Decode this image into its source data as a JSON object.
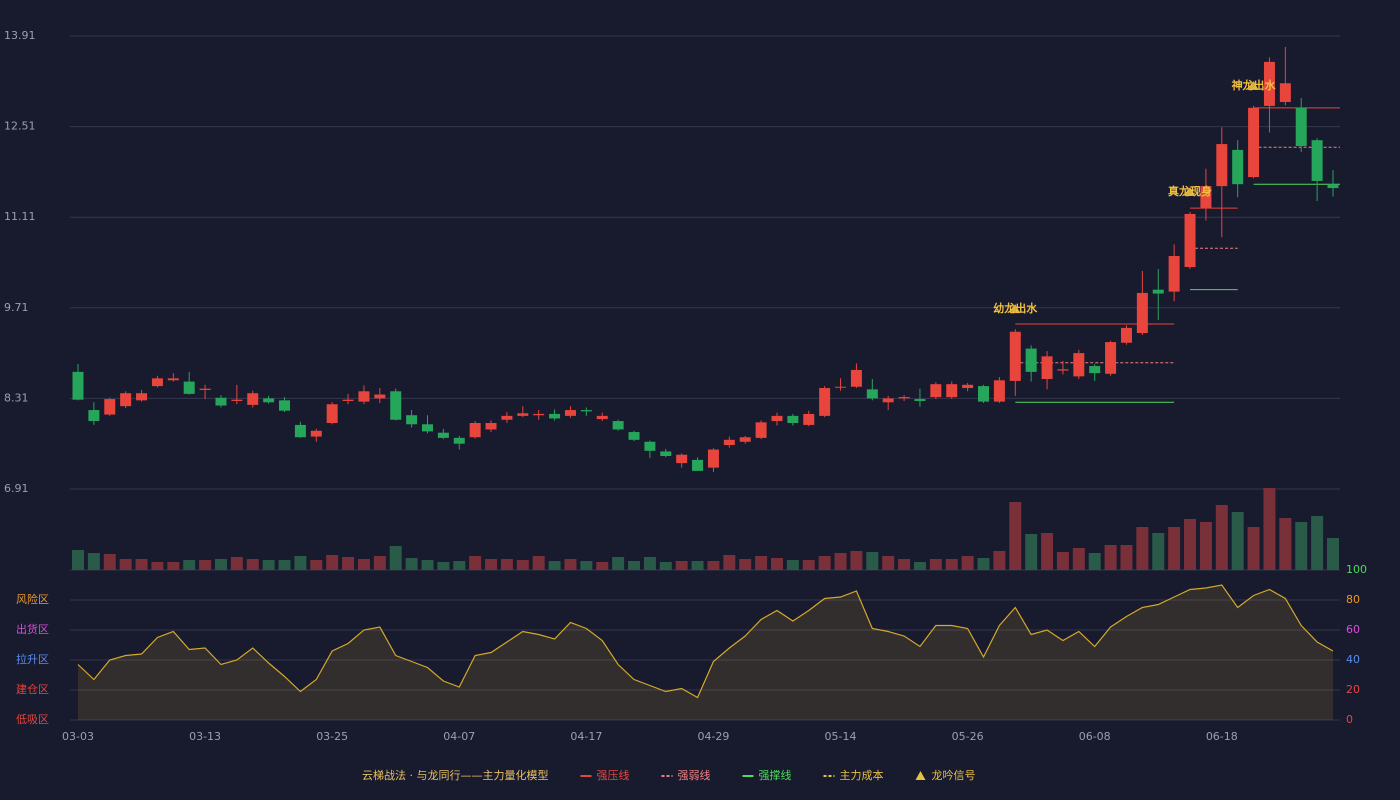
{
  "chart_data": {
    "type": "candlestick",
    "categories": [
      "03-03",
      null,
      null,
      null,
      null,
      null,
      null,
      null,
      "03-13",
      null,
      null,
      null,
      null,
      null,
      null,
      null,
      "03-25",
      null,
      null,
      null,
      null,
      null,
      null,
      null,
      "04-07",
      null,
      null,
      null,
      null,
      null,
      null,
      null,
      "04-17",
      null,
      null,
      null,
      null,
      null,
      null,
      null,
      "04-29",
      null,
      null,
      null,
      null,
      null,
      null,
      null,
      "05-14",
      null,
      null,
      null,
      null,
      null,
      null,
      null,
      "05-26",
      null,
      null,
      null,
      null,
      null,
      null,
      null,
      "06-08",
      null,
      null,
      null,
      null,
      null,
      null,
      null,
      "06-18",
      null,
      null,
      null,
      null,
      null,
      null,
      null
    ],
    "open": [
      8.72,
      8.13,
      8.06,
      8.19,
      8.28,
      8.5,
      8.59,
      8.57,
      8.44,
      8.32,
      8.27,
      8.21,
      8.31,
      8.28,
      7.9,
      7.72,
      7.93,
      8.27,
      8.26,
      8.31,
      8.42,
      8.05,
      7.91,
      7.78,
      7.7,
      7.71,
      7.83,
      7.98,
      8.04,
      8.05,
      8.07,
      8.04,
      8.13,
      7.99,
      7.96,
      7.79,
      7.64,
      7.49,
      7.31,
      7.36,
      7.24,
      7.59,
      7.64,
      7.7,
      7.96,
      8.04,
      7.9,
      8.04,
      8.48,
      8.49,
      8.45,
      8.25,
      8.31,
      8.3,
      8.33,
      8.33,
      8.47,
      8.5,
      8.26,
      8.58,
      9.08,
      8.61,
      8.74,
      8.65,
      8.81,
      8.69,
      9.17,
      9.32,
      9.99,
      9.96,
      10.34,
      11.25,
      11.59,
      12.15,
      11.73,
      12.83,
      12.89,
      12.8,
      12.3,
      11.62
    ],
    "close": [
      8.29,
      7.96,
      8.3,
      8.39,
      8.39,
      8.62,
      8.62,
      8.38,
      8.46,
      8.2,
      8.29,
      8.39,
      8.25,
      8.12,
      7.71,
      7.81,
      8.22,
      8.29,
      8.42,
      8.37,
      7.98,
      7.91,
      7.8,
      7.7,
      7.61,
      7.93,
      7.93,
      8.04,
      8.08,
      8.07,
      8.0,
      8.13,
      8.11,
      8.04,
      7.83,
      7.67,
      7.5,
      7.42,
      7.44,
      7.19,
      7.52,
      7.67,
      7.71,
      7.94,
      8.04,
      7.93,
      8.07,
      8.47,
      8.49,
      8.75,
      8.31,
      8.31,
      8.33,
      8.27,
      8.53,
      8.53,
      8.52,
      8.26,
      8.59,
      9.34,
      8.72,
      8.96,
      8.76,
      9.01,
      8.7,
      9.18,
      9.4,
      9.94,
      9.93,
      10.51,
      11.16,
      11.59,
      12.24,
      11.62,
      12.8,
      13.51,
      13.18,
      12.21,
      11.67,
      11.56
    ],
    "high": [
      8.84,
      8.25,
      8.32,
      8.42,
      8.44,
      8.66,
      8.7,
      8.72,
      8.52,
      8.36,
      8.52,
      8.43,
      8.35,
      8.33,
      7.95,
      7.84,
      8.25,
      8.38,
      8.51,
      8.47,
      8.46,
      8.13,
      8.05,
      7.84,
      7.73,
      7.96,
      7.97,
      8.1,
      8.19,
      8.13,
      8.14,
      8.19,
      8.17,
      8.09,
      7.98,
      7.81,
      7.66,
      7.53,
      7.46,
      7.4,
      7.54,
      7.72,
      7.73,
      7.97,
      8.09,
      8.07,
      8.12,
      8.5,
      8.62,
      8.85,
      8.61,
      8.35,
      8.36,
      8.46,
      8.56,
      8.57,
      8.55,
      8.52,
      8.64,
      9.38,
      9.13,
      9.04,
      8.89,
      9.06,
      8.84,
      9.2,
      9.44,
      10.28,
      10.31,
      10.69,
      11.19,
      11.86,
      12.5,
      12.3,
      12.83,
      13.58,
      13.74,
      12.95,
      12.33,
      11.84
    ],
    "low": [
      8.28,
      7.9,
      8.04,
      8.16,
      8.26,
      8.48,
      8.57,
      8.37,
      8.3,
      8.17,
      8.22,
      8.17,
      8.23,
      8.1,
      7.7,
      7.64,
      7.91,
      8.22,
      8.22,
      8.24,
      7.97,
      7.86,
      7.77,
      7.68,
      7.52,
      7.69,
      7.79,
      7.93,
      8.02,
      7.98,
      7.97,
      8.01,
      8.04,
      7.96,
      7.81,
      7.65,
      7.39,
      7.4,
      7.24,
      7.19,
      7.17,
      7.55,
      7.61,
      7.68,
      7.89,
      7.89,
      7.88,
      8.02,
      8.43,
      8.47,
      8.28,
      8.13,
      8.27,
      8.18,
      8.3,
      8.3,
      8.42,
      8.24,
      8.24,
      8.35,
      8.57,
      8.45,
      8.68,
      8.61,
      8.58,
      8.66,
      9.14,
      9.29,
      9.52,
      9.81,
      10.31,
      11.06,
      10.8,
      11.42,
      11.71,
      12.42,
      12.84,
      12.12,
      11.36,
      11.43
    ],
    "ylim": [
      6.91,
      13.91
    ],
    "yticks": [
      6.91,
      8.31,
      9.71,
      11.11,
      12.51,
      13.91
    ],
    "grid": true,
    "up_color": "#e8453c",
    "down_color": "#26a65b",
    "volume": {
      "values": [
        20,
        17,
        16,
        11,
        11,
        8,
        8,
        10,
        10,
        11,
        13,
        11,
        10,
        10,
        14,
        10,
        15,
        13,
        11,
        14,
        24,
        12,
        10,
        8,
        9,
        14,
        11,
        11,
        10,
        14,
        9,
        11,
        9,
        8,
        13,
        9,
        13,
        8,
        9,
        9,
        9,
        15,
        11,
        14,
        12,
        10,
        10,
        14,
        17,
        19,
        18,
        14,
        11,
        8,
        11,
        11,
        14,
        12,
        19,
        68,
        36,
        37,
        18,
        22,
        17,
        25,
        25,
        43,
        37,
        43,
        51,
        48,
        65,
        58,
        43,
        82,
        52,
        48,
        54,
        32
      ],
      "ylim": [
        0,
        82
      ],
      "up_color": "#7a3038",
      "down_color": "#2a5a48"
    },
    "oscillator": {
      "values": [
        37,
        27,
        40,
        43,
        44,
        55,
        59,
        47,
        48,
        37,
        40,
        48,
        38,
        29,
        19,
        27,
        46,
        51,
        60,
        62,
        43,
        39,
        35,
        26,
        22,
        43,
        45,
        52,
        59,
        57,
        54,
        65,
        61,
        53,
        37,
        27,
        23,
        19,
        21,
        15,
        39,
        48,
        56,
        67,
        73,
        66,
        73,
        81,
        82,
        86,
        61,
        59,
        56,
        49,
        63,
        63,
        61,
        42,
        63,
        75,
        57,
        60,
        53,
        59,
        49,
        62,
        69,
        75,
        77,
        82,
        87,
        88,
        90,
        75,
        83,
        87,
        81,
        63,
        52,
        46
      ],
      "ylim": [
        0,
        100
      ],
      "yticks": [
        0,
        20,
        40,
        60,
        80,
        100
      ],
      "ytick_colors": [
        "#e8453c",
        "#e8453c",
        "#5b8def",
        "#d64fd6",
        "#e89a2a",
        "#4ddb5a"
      ],
      "color": "#d4a82a",
      "zones": [
        {
          "value": 80,
          "label": "风险区",
          "color": "#e89a2a"
        },
        {
          "value": 60,
          "label": "出货区",
          "color": "#d64fd6"
        },
        {
          "value": 40,
          "label": "拉升区",
          "color": "#5b8def"
        },
        {
          "value": 20,
          "label": "建仓区",
          "color": "#e8453c"
        },
        {
          "value": 0,
          "label": "低吸区",
          "color": "#e8453c"
        }
      ]
    },
    "annotations": [
      {
        "index": 59,
        "text": "幼龙出水"
      },
      {
        "index": 70,
        "text": "真龙现身"
      },
      {
        "index": 74,
        "text": "神龙出水"
      }
    ],
    "levels": [
      {
        "from": 59,
        "to": 69,
        "resistance": 9.46,
        "pivot": 8.86,
        "support": 8.25
      },
      {
        "from": 70,
        "to": 73,
        "resistance": 11.25,
        "pivot": 10.63,
        "support": 9.99
      },
      {
        "from": 74,
        "to": 79,
        "resistance": 12.8,
        "pivot": 12.19,
        "support": 11.62
      }
    ],
    "level_colors": {
      "resistance": "#e8453c",
      "pivot": "#f08080",
      "support": "#4ddb5a"
    },
    "annotation_color": "#f0c040",
    "legend": {
      "title": "云梯战法 · 与龙同行——主力量化模型",
      "title_color": "#e8c060",
      "items": [
        {
          "name": "强压线",
          "color": "#e8453c",
          "style": "solid"
        },
        {
          "name": "强弱线",
          "color": "#f08080",
          "style": "dashed"
        },
        {
          "name": "强撑线",
          "color": "#4ddb5a",
          "style": "solid"
        },
        {
          "name": "主力成本",
          "color": "#e8c040",
          "style": "dashed"
        },
        {
          "name": "龙吟信号",
          "color": "#e8c040",
          "style": "triangle"
        }
      ]
    }
  }
}
